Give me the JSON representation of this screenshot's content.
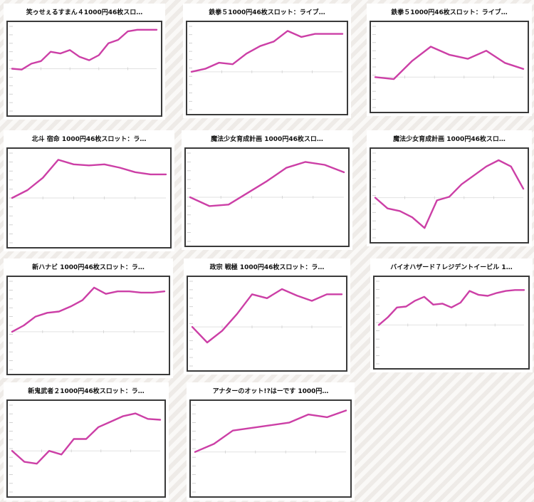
{
  "chart_data": [
    {
      "type": "line",
      "title": "笑ゥせぇるすまん４1000円46枚スロ…",
      "color": "#cc3fa6",
      "x": [
        0,
        1,
        2,
        3,
        4,
        5,
        6,
        7,
        8,
        9,
        10,
        11,
        12,
        13,
        14,
        15
      ],
      "values": [
        0,
        -50,
        300,
        450,
        1000,
        900,
        1100,
        700,
        500,
        800,
        1500,
        1700,
        2200,
        2300,
        2300,
        2300
      ],
      "ylim": [
        -2500,
        2500
      ],
      "grid": true
    },
    {
      "type": "line",
      "title": "鉄拳５1000円46枚スロット：ライブ…",
      "color": "#cc3fa6",
      "x": [
        0,
        1,
        2,
        3,
        4,
        5,
        6,
        7,
        8,
        9,
        10,
        11
      ],
      "values": [
        0,
        200,
        600,
        500,
        1200,
        1700,
        2000,
        2700,
        2300,
        2500,
        2500,
        2500
      ],
      "ylim": [
        -2500,
        3000
      ],
      "grid": true
    },
    {
      "type": "line",
      "title": "鉄拳５1000円46枚スロット：ライブ…",
      "color": "#cc3fa6",
      "x": [
        0,
        1,
        2,
        3,
        4,
        5,
        6,
        7,
        8
      ],
      "values": [
        0,
        -100,
        800,
        1500,
        1100,
        900,
        1300,
        700,
        400
      ],
      "ylim": [
        -1500,
        2500
      ],
      "grid": true
    },
    {
      "type": "line",
      "title": "北斗 宿命 1000円46枚スロット：ラ…",
      "color": "#cc3fa6",
      "x": [
        0,
        1,
        2,
        3,
        4,
        5,
        6,
        7,
        8,
        9,
        10
      ],
      "values": [
        0,
        700,
        1800,
        3400,
        3000,
        2900,
        3000,
        2700,
        2300,
        2100,
        2100
      ],
      "ylim": [
        -4000,
        4000
      ],
      "grid": true
    },
    {
      "type": "line",
      "title": "魔法少女育成計画 1000円46枚スロ…",
      "color": "#cc3fa6",
      "x": [
        0,
        1,
        2,
        3,
        4,
        5,
        6,
        7,
        8
      ],
      "values": [
        0,
        -600,
        -500,
        300,
        1100,
        2000,
        2400,
        2200,
        1700
      ],
      "ylim": [
        -3000,
        3000
      ],
      "grid": true
    },
    {
      "type": "line",
      "title": "魔法少女育成計画 1000円46枚スロ…",
      "color": "#cc3fa6",
      "x": [
        0,
        1,
        2,
        3,
        4,
        5,
        6,
        7,
        8,
        9,
        10,
        11,
        12
      ],
      "values": [
        0,
        -1200,
        -1500,
        -2200,
        -3400,
        -300,
        100,
        1500,
        2500,
        3500,
        4200,
        3500,
        1000
      ],
      "ylim": [
        -4500,
        5000
      ],
      "grid": true
    },
    {
      "type": "line",
      "title": "新ハナビ 1000円46枚スロット：ラ…",
      "color": "#cc3fa6",
      "x": [
        0,
        1,
        2,
        3,
        4,
        5,
        6,
        7,
        8,
        9,
        10,
        11,
        12,
        13
      ],
      "values": [
        0,
        500,
        1200,
        1500,
        1600,
        2000,
        2500,
        3500,
        3000,
        3200,
        3200,
        3100,
        3100,
        3200
      ],
      "ylim": [
        -3000,
        4000
      ],
      "grid": true
    },
    {
      "type": "line",
      "title": "政宗 戦極 1000円46枚スロット：ラ…",
      "color": "#cc3fa6",
      "x": [
        0,
        1,
        2,
        3,
        4,
        5,
        6,
        7,
        8,
        9,
        10
      ],
      "values": [
        0,
        -1200,
        -300,
        1000,
        2500,
        2200,
        2900,
        2400,
        2000,
        2500,
        2500
      ],
      "ylim": [
        -3000,
        3500
      ],
      "grid": true
    },
    {
      "type": "line",
      "title": "バイオハザード７レジデントイービル 1…",
      "color": "#cc3fa6",
      "x": [
        0,
        1,
        2,
        3,
        4,
        5,
        6,
        7,
        8,
        9,
        10,
        11,
        12,
        13,
        14,
        15,
        16
      ],
      "values": [
        0,
        800,
        1800,
        1900,
        2500,
        2900,
        2100,
        2200,
        1800,
        2300,
        3500,
        3100,
        3000,
        3300,
        3500,
        3600,
        3600
      ],
      "ylim": [
        -4000,
        4500
      ],
      "grid": true
    },
    {
      "type": "line",
      "title": "新鬼武者２1000円46枚スロット：ラ…",
      "color": "#cc3fa6",
      "x": [
        0,
        1,
        2,
        3,
        4,
        5,
        6,
        7,
        8,
        9,
        10,
        11,
        12
      ],
      "values": [
        0,
        -1200,
        -1400,
        0,
        -400,
        1300,
        1300,
        2600,
        3200,
        3800,
        4100,
        3500,
        3400
      ],
      "ylim": [
        -4500,
        5000
      ],
      "grid": true
    },
    {
      "type": "line",
      "title": "アナターのオット!?はーです 1000円…",
      "color": "#cc3fa6",
      "x": [
        0,
        1,
        2,
        3,
        4,
        5,
        6,
        7,
        8
      ],
      "values": [
        0,
        600,
        1600,
        1800,
        2000,
        2200,
        2800,
        2600,
        3100
      ],
      "ylim": [
        -3000,
        3500
      ],
      "grid": true
    }
  ]
}
